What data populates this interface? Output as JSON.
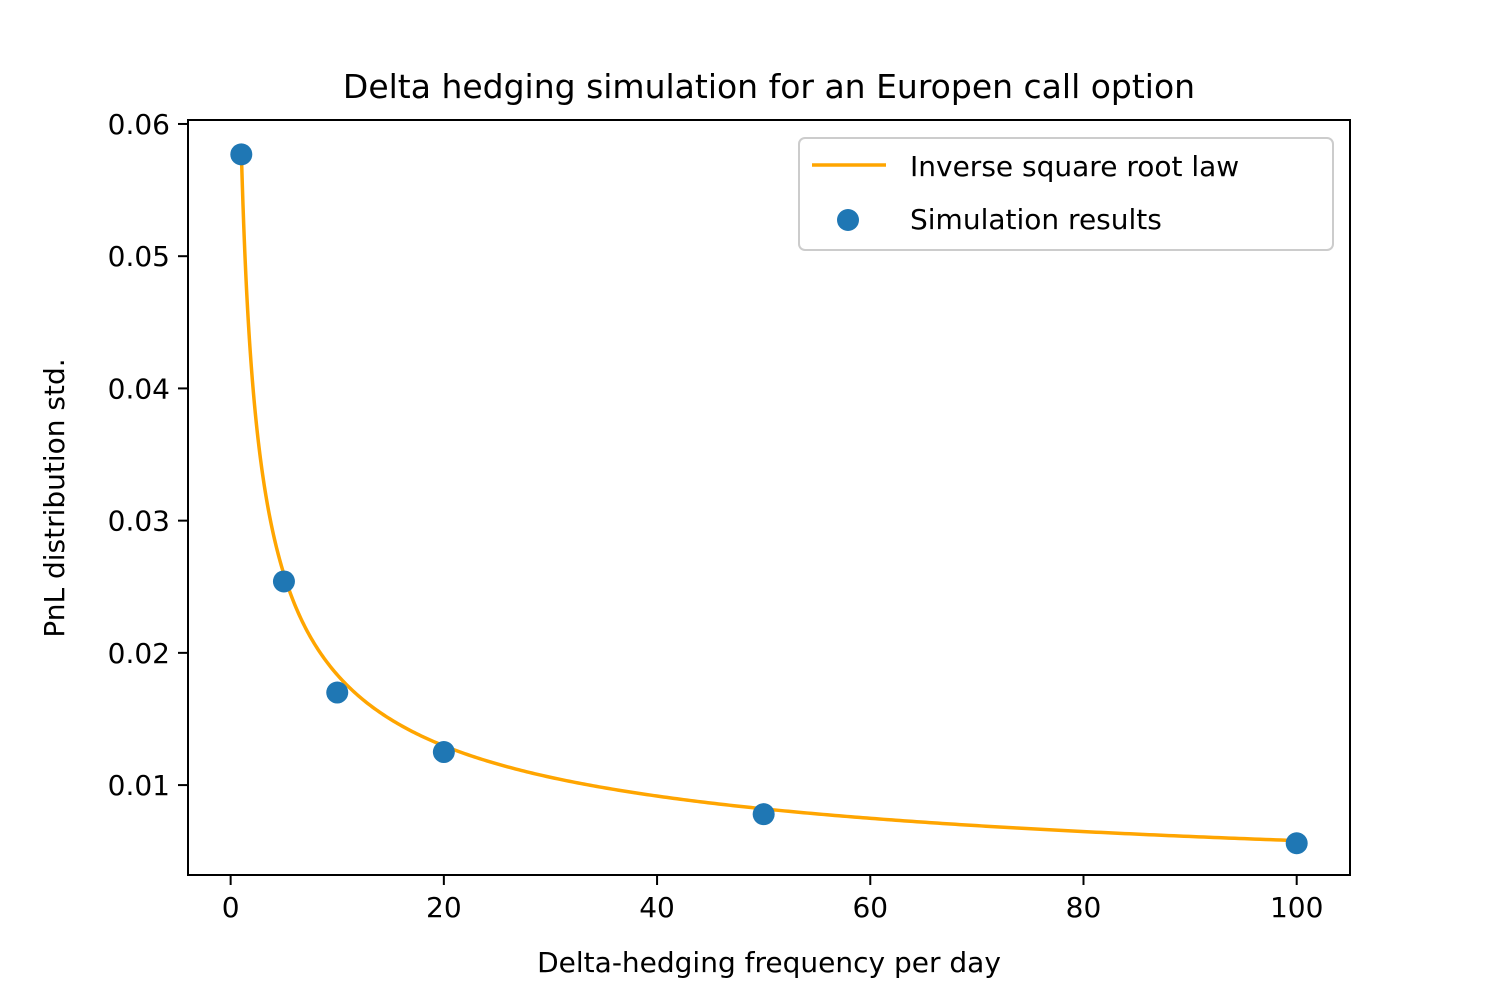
{
  "chart_data": {
    "type": "scatter",
    "title": "Delta hedging simulation for an Europen call option",
    "xlabel": "Delta-hedging frequency per day",
    "ylabel": "PnL distribution std.",
    "xlim": [
      -4,
      105
    ],
    "ylim": [
      0.0032,
      0.0603
    ],
    "xticks": [
      0,
      20,
      40,
      60,
      80,
      100
    ],
    "yticks": [
      0.01,
      0.02,
      0.03,
      0.04,
      0.05,
      0.06
    ],
    "xtick_labels": [
      "0",
      "20",
      "40",
      "60",
      "80",
      "100"
    ],
    "ytick_labels": [
      "0.01",
      "0.02",
      "0.03",
      "0.04",
      "0.05",
      "0.06"
    ],
    "grid": false,
    "legend_position": "top-right",
    "series": [
      {
        "name": "Inverse square root law",
        "kind": "line",
        "color": "#ffa500",
        "formula": "y = 0.058 / sqrt(x)",
        "coefficient": 0.058,
        "x_range": [
          1,
          100
        ]
      },
      {
        "name": "Simulation results",
        "kind": "scatter",
        "color": "#1f77b4",
        "x": [
          1,
          5,
          10,
          20,
          50,
          100
        ],
        "y": [
          0.0577,
          0.0254,
          0.017,
          0.0125,
          0.0078,
          0.0056
        ]
      }
    ]
  }
}
